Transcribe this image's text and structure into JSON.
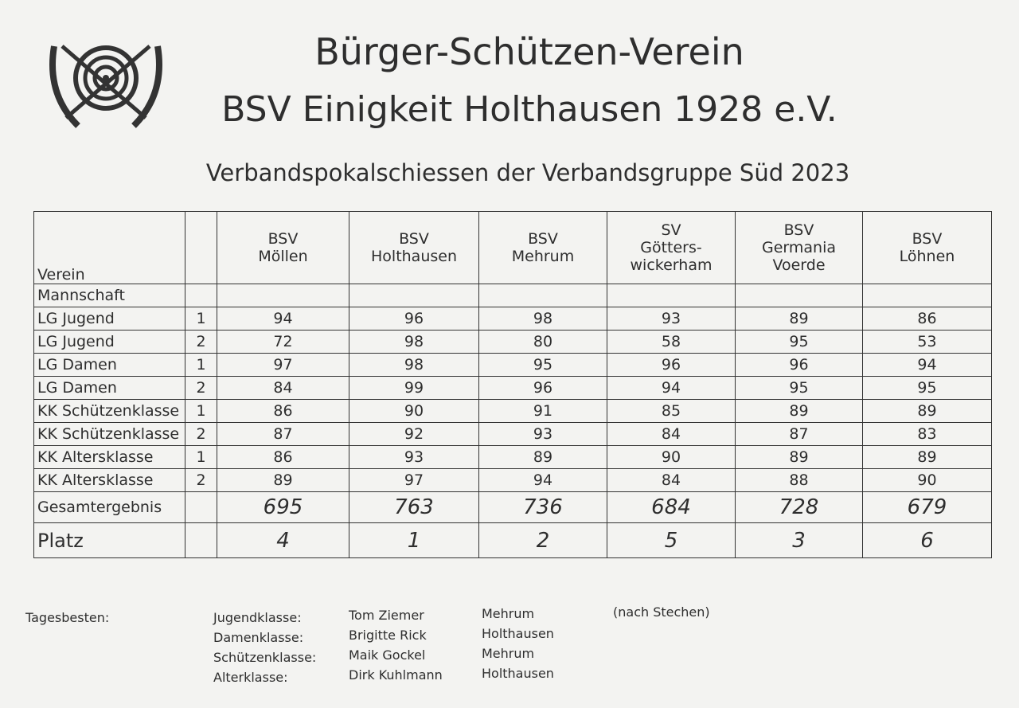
{
  "header": {
    "title_lines": [
      "Bürger-Schützen-Verein",
      "BSV Einigkeit Holthausen 1928 e.V."
    ],
    "subtitle": "Verbandspokalschiessen der Verbandsgruppe Süd 2023"
  },
  "table": {
    "corner": "Verein",
    "subheader": "Mannschaft",
    "teams": [
      [
        "BSV",
        "Möllen"
      ],
      [
        "BSV",
        "Holthausen"
      ],
      [
        "BSV",
        "Mehrum"
      ],
      [
        "SV",
        "Götters-",
        "wickerham"
      ],
      [
        "BSV",
        "Germania",
        "Voerde"
      ],
      [
        "BSV",
        "Löhnen"
      ]
    ],
    "rows": [
      {
        "label": "LG Jugend",
        "team": 1,
        "scores": [
          94,
          96,
          98,
          93,
          89,
          86
        ]
      },
      {
        "label": "LG Jugend",
        "team": 2,
        "scores": [
          72,
          98,
          80,
          58,
          95,
          53
        ]
      },
      {
        "label": "LG Damen",
        "team": 1,
        "scores": [
          97,
          98,
          95,
          96,
          96,
          94
        ]
      },
      {
        "label": "LG Damen",
        "team": 2,
        "scores": [
          84,
          99,
          96,
          94,
          95,
          95
        ]
      },
      {
        "label": "KK Schützenklasse",
        "team": 1,
        "scores": [
          86,
          90,
          91,
          85,
          89,
          89
        ]
      },
      {
        "label": "KK Schützenklasse",
        "team": 2,
        "scores": [
          87,
          92,
          93,
          84,
          87,
          83
        ]
      },
      {
        "label": "KK Altersklasse",
        "team": 1,
        "scores": [
          86,
          93,
          89,
          90,
          89,
          89
        ]
      },
      {
        "label": "KK Altersklasse",
        "team": 2,
        "scores": [
          89,
          97,
          94,
          84,
          88,
          90
        ]
      }
    ],
    "total": {
      "label": "Gesamtergebnis",
      "values": [
        695,
        763,
        736,
        684,
        728,
        679
      ]
    },
    "rank": {
      "label": "Platz",
      "values": [
        4,
        1,
        2,
        5,
        3,
        6
      ]
    }
  },
  "footer": {
    "label": "Tagesbesten:",
    "note": "(nach Stechen)",
    "entries": [
      {
        "class": "Jugendklasse:",
        "name": "Tom Ziemer",
        "club": "Mehrum"
      },
      {
        "class": "Damenklasse:",
        "name": "Brigitte Rick",
        "club": "Holthausen"
      },
      {
        "class": "Schützenklasse:",
        "name": "Maik Gockel",
        "club": "Mehrum"
      },
      {
        "class": "Alterklasse:",
        "name": "Dirk Kuhlmann",
        "club": "Holthausen"
      }
    ]
  }
}
